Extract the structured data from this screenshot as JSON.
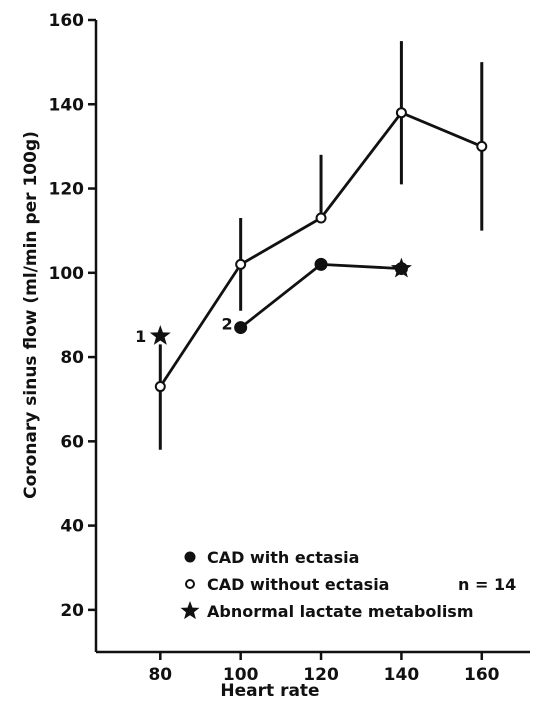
{
  "chart_data": {
    "type": "line",
    "title": "",
    "xlabel": "Heart rate",
    "ylabel": "Coronary sinus flow (ml/min per 100g)",
    "xlim": [
      64,
      172
    ],
    "ylim": [
      10,
      160
    ],
    "x_ticks": [
      80,
      100,
      120,
      140,
      160
    ],
    "y_ticks": [
      20,
      40,
      60,
      80,
      100,
      120,
      140,
      160
    ],
    "grid": false,
    "legend_position": "bottom-right",
    "series": [
      {
        "name": "CAD without ectasia",
        "marker": "open-circle",
        "x": [
          80,
          100,
          120,
          140,
          160
        ],
        "y": [
          73,
          102,
          113,
          138,
          130
        ],
        "error_high": [
          83,
          113,
          128,
          155,
          150
        ],
        "error_low": [
          58,
          91,
          113,
          121,
          110
        ]
      },
      {
        "name": "CAD with ectasia",
        "marker": "filled-circle",
        "x": [
          100,
          120,
          140
        ],
        "y": [
          87,
          102,
          101
        ]
      }
    ],
    "abnormal_lactate_points": [
      {
        "x": 80,
        "y": 85,
        "label": "1"
      },
      {
        "x": 140,
        "y": 101,
        "label": ""
      }
    ],
    "point_labels": [
      {
        "text": "2",
        "x": 100,
        "y": 87
      }
    ],
    "legend": [
      {
        "symbol": "filled-circle",
        "text": "CAD with ectasia"
      },
      {
        "symbol": "open-circle",
        "text": "CAD without ectasia",
        "extra": "n = 14"
      },
      {
        "symbol": "star",
        "text": "Abnormal lactate metabolism"
      }
    ]
  }
}
